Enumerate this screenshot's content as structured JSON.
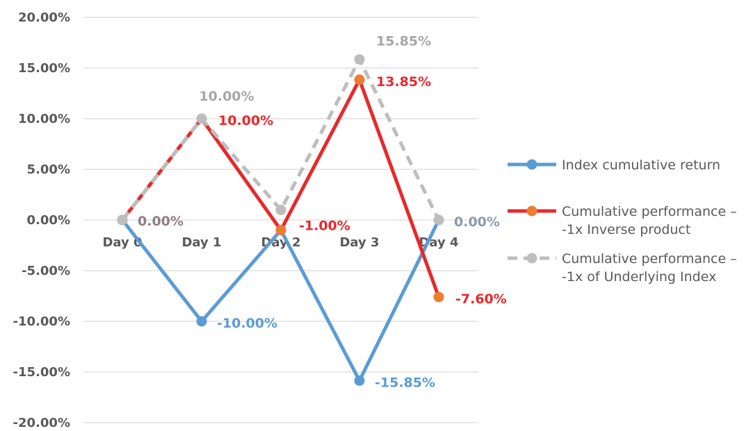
{
  "chart_data": {
    "type": "line",
    "categories": [
      "Day 0",
      "Day 1",
      "Day 2",
      "Day 3",
      "Day 4"
    ],
    "ylim": [
      -0.2,
      0.2
    ],
    "ytick_values": [
      0.2,
      0.15,
      0.1,
      0.05,
      0.0,
      -0.05,
      -0.1,
      -0.15,
      -0.2
    ],
    "ytick_labels": [
      "20.00%",
      "15.00%",
      "10.00%",
      "5.00%",
      "0.00%",
      "-5.00%",
      "-10.00%",
      "-15.00%",
      "-20.00%"
    ],
    "grid": true,
    "legend_position": "right",
    "series": [
      {
        "name": "Index cumulative return",
        "legend_lines": [
          "Index cumulative return"
        ],
        "values": [
          0.0,
          -0.1,
          -0.01,
          -0.1585,
          0.0
        ],
        "color": "#5B9BD5",
        "marker_color": "#5B9BD5",
        "dashed": false,
        "labels": [
          null,
          "-10.00%",
          null,
          "-15.85%",
          "0.00%"
        ],
        "label_color": "#5B9BD5"
      },
      {
        "name": "Cumulative performance – -1x Inverse product",
        "legend_lines": [
          "Cumulative performance –",
          "-1x Inverse product"
        ],
        "values": [
          0.0,
          0.1,
          -0.01,
          0.1385,
          -0.076
        ],
        "color": "#E8282B",
        "marker_color": "#ED7D31",
        "dashed": false,
        "labels": [
          null,
          "10.00%",
          "-1.00%",
          "13.85%",
          "-7.60%"
        ],
        "label_color": "#E8282B"
      },
      {
        "name": "Cumulative performance – -1x of Underlying Index",
        "legend_lines": [
          "Cumulative performance –",
          "-1x of Underlying Index"
        ],
        "values": [
          0.0,
          0.1,
          0.01,
          0.1585,
          0.0
        ],
        "color": "#BDBDBD",
        "marker_color": "#BDBDBD",
        "dashed": true,
        "labels": [
          "0.00%",
          "10.00%",
          null,
          "15.85%",
          null
        ],
        "label_color": "#A6A6A6"
      }
    ]
  }
}
